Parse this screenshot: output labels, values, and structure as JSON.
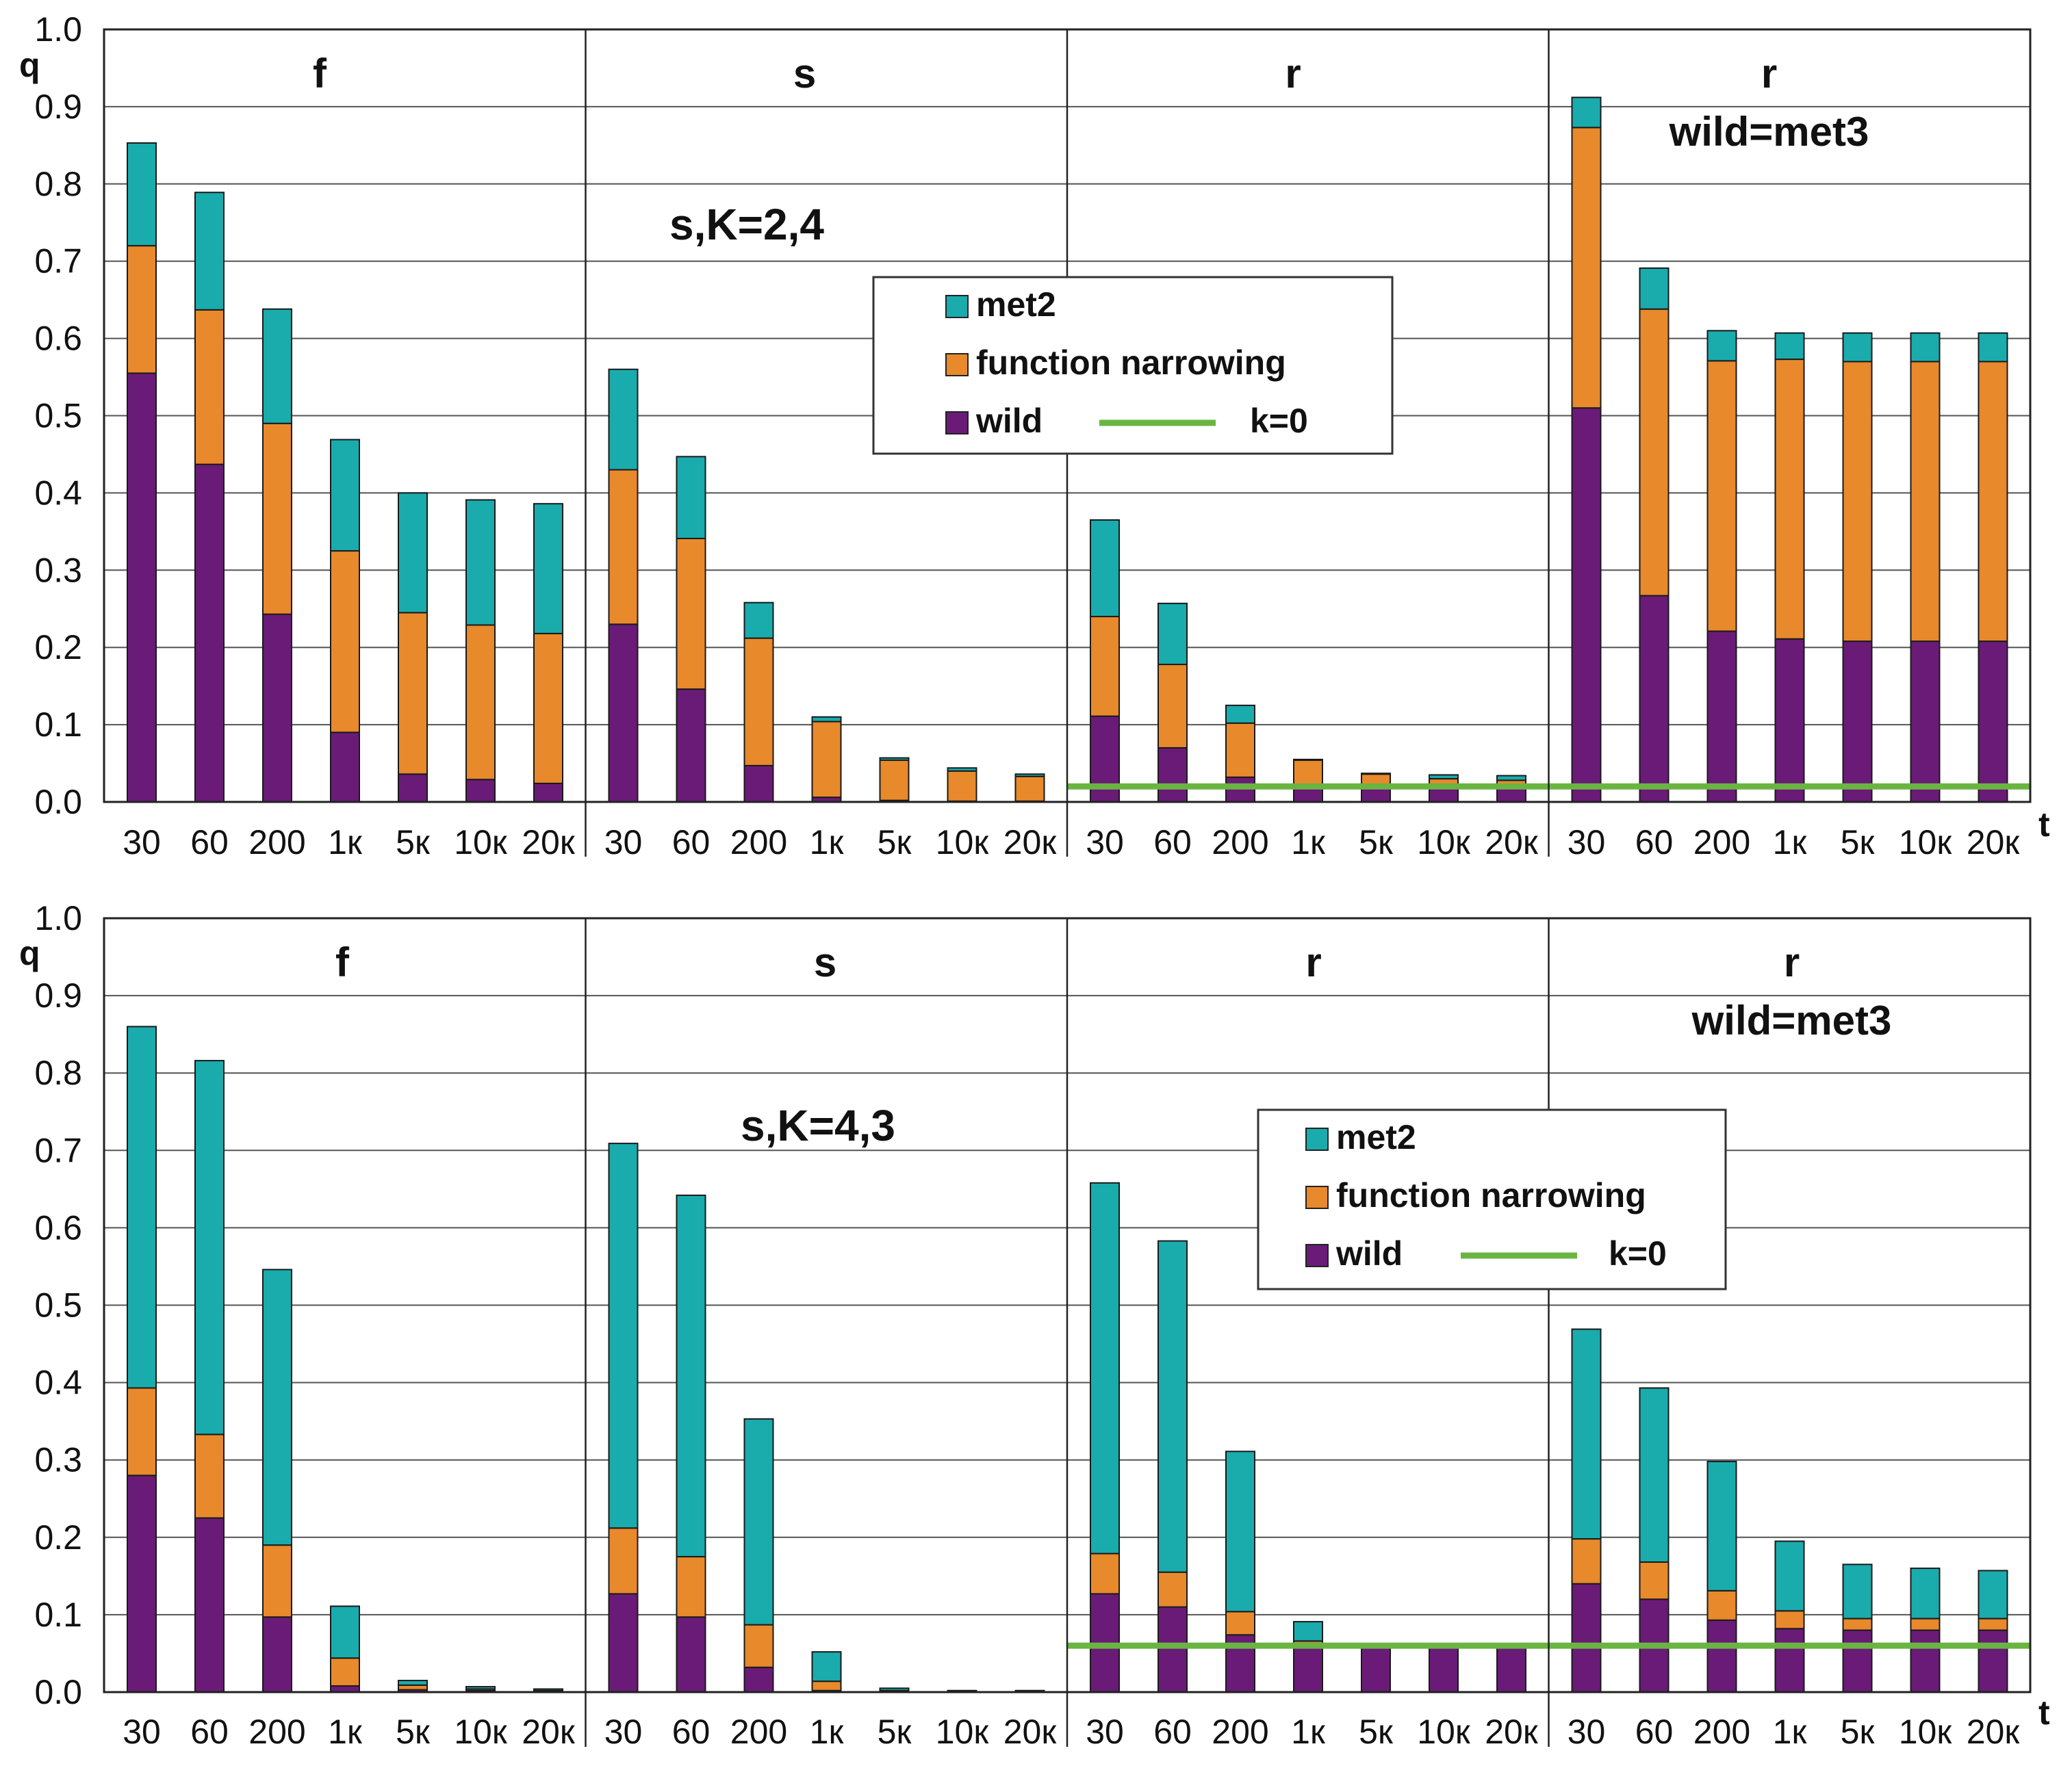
{
  "colors": {
    "met2": "#1aabad",
    "narrowing": "#e8892c",
    "wild": "#6a1b78",
    "k0": "#6ab542",
    "grid": "#555555",
    "frame": "#222222"
  },
  "legend": {
    "met2": "met2",
    "narrowing": "function narrowing",
    "wild": "wild",
    "k0": "k=0"
  },
  "chart_data": [
    {
      "type": "bar",
      "stacked": true,
      "annotation": "s,K=2,4",
      "ylabel": "q",
      "xlabel": "t",
      "ylim": [
        0,
        1
      ],
      "yticks": [
        "0.0",
        "0.1",
        "0.2",
        "0.3",
        "0.4",
        "0.5",
        "0.6",
        "0.7",
        "0.8",
        "0.9",
        "1.0"
      ],
      "categories": [
        "30",
        "60",
        "200",
        "1к",
        "5к",
        "10к",
        "20к"
      ],
      "legend_position": "upper-middle",
      "panels": [
        {
          "title": "f",
          "subtitle": "",
          "wild": [
            0.555,
            0.437,
            0.243,
            0.09,
            0.036,
            0.029,
            0.024
          ],
          "narrowing": [
            0.165,
            0.2,
            0.247,
            0.235,
            0.209,
            0.2,
            0.194
          ],
          "met2": [
            0.133,
            0.152,
            0.148,
            0.144,
            0.155,
            0.162,
            0.168
          ],
          "k0": null
        },
        {
          "title": "s",
          "subtitle": "",
          "wild": [
            0.23,
            0.146,
            0.047,
            0.006,
            0.002,
            0.001,
            0.001
          ],
          "narrowing": [
            0.2,
            0.195,
            0.165,
            0.098,
            0.052,
            0.039,
            0.032
          ],
          "met2": [
            0.13,
            0.106,
            0.046,
            0.006,
            0.003,
            0.004,
            0.003
          ],
          "k0": null
        },
        {
          "title": "r",
          "subtitle": "",
          "wild": [
            0.111,
            0.07,
            0.032,
            0.02,
            0.02,
            0.02,
            0.02
          ],
          "narrowing": [
            0.129,
            0.108,
            0.07,
            0.034,
            0.016,
            0.01,
            0.008
          ],
          "met2": [
            0.125,
            0.079,
            0.023,
            0.001,
            0.001,
            0.005,
            0.006
          ],
          "k0": 0.02
        },
        {
          "title": "r",
          "subtitle": "wild=met3",
          "wild": [
            0.51,
            0.267,
            0.221,
            0.211,
            0.208,
            0.208,
            0.208
          ],
          "narrowing": [
            0.363,
            0.371,
            0.35,
            0.362,
            0.362,
            0.362,
            0.362
          ],
          "met2": [
            0.039,
            0.053,
            0.039,
            0.034,
            0.037,
            0.037,
            0.037
          ],
          "k0": 0.02
        }
      ]
    },
    {
      "type": "bar",
      "stacked": true,
      "annotation": "s,K=4,3",
      "ylabel": "q",
      "xlabel": "t",
      "ylim": [
        0,
        1
      ],
      "yticks": [
        "0.0",
        "0.1",
        "0.2",
        "0.3",
        "0.4",
        "0.5",
        "0.6",
        "0.7",
        "0.8",
        "0.9",
        "1.0"
      ],
      "categories": [
        "30",
        "60",
        "200",
        "1к",
        "5к",
        "10к",
        "20к"
      ],
      "legend_position": "right-middle",
      "panels": [
        {
          "title": "f",
          "subtitle": "",
          "wild": [
            0.28,
            0.225,
            0.097,
            0.008,
            0.003,
            0.002,
            0.001
          ],
          "narrowing": [
            0.113,
            0.108,
            0.093,
            0.036,
            0.006,
            0.002,
            0.001
          ],
          "met2": [
            0.467,
            0.483,
            0.356,
            0.067,
            0.006,
            0.003,
            0.002
          ],
          "k0": null
        },
        {
          "title": "s",
          "subtitle": "",
          "wild": [
            0.127,
            0.097,
            0.032,
            0.002,
            0.001,
            0.001,
            0.001
          ],
          "narrowing": [
            0.085,
            0.078,
            0.055,
            0.012,
            0.001,
            0.0,
            0.0
          ],
          "met2": [
            0.497,
            0.467,
            0.266,
            0.038,
            0.003,
            0.001,
            0.001
          ],
          "k0": null
        },
        {
          "title": "r",
          "subtitle": "",
          "wild": [
            0.127,
            0.11,
            0.074,
            0.06,
            0.06,
            0.06,
            0.06
          ],
          "narrowing": [
            0.052,
            0.045,
            0.03,
            0.006,
            0.001,
            0.0,
            0.0
          ],
          "met2": [
            0.479,
            0.428,
            0.207,
            0.025,
            0.001,
            0.001,
            0.0
          ],
          "k0": 0.06
        },
        {
          "title": "r",
          "subtitle": "wild=met3",
          "wild": [
            0.14,
            0.12,
            0.093,
            0.082,
            0.08,
            0.08,
            0.08
          ],
          "narrowing": [
            0.058,
            0.048,
            0.038,
            0.023,
            0.015,
            0.015,
            0.015
          ],
          "met2": [
            0.271,
            0.225,
            0.167,
            0.09,
            0.07,
            0.065,
            0.062
          ],
          "k0": 0.06
        }
      ]
    }
  ]
}
